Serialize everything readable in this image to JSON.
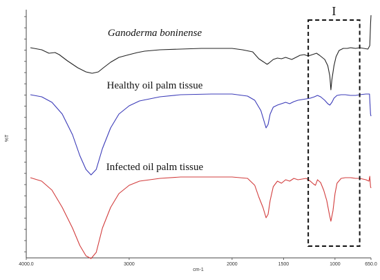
{
  "chart_data": {
    "type": "line",
    "title": "",
    "xlabel": "cm-1",
    "ylabel": "%T",
    "xlim": [
      4000,
      650
    ],
    "x_reversed": true,
    "x_ticks": [
      {
        "value": 4000,
        "label": "4000.0"
      },
      {
        "value": 3000,
        "label": "3000"
      },
      {
        "value": 2000,
        "label": "2000"
      },
      {
        "value": 1500,
        "label": "1500"
      },
      {
        "value": 1000,
        "label": "1000"
      },
      {
        "value": 650,
        "label": "650.0"
      }
    ],
    "grid": false,
    "legend": "none",
    "annotations": [
      {
        "text": "I",
        "type": "dashed-box",
        "x_range": [
          1260,
          760
        ]
      }
    ],
    "series": [
      {
        "name": "Ganoderma boninense",
        "color": "#222222",
        "label_italic": true,
        "points": [
          [
            3960,
            69
          ],
          [
            3850,
            72
          ],
          [
            3780,
            77
          ],
          [
            3720,
            76
          ],
          [
            3680,
            79
          ],
          [
            3600,
            88
          ],
          [
            3500,
            98
          ],
          [
            3420,
            104
          ],
          [
            3360,
            106
          ],
          [
            3300,
            104
          ],
          [
            3250,
            98
          ],
          [
            3180,
            90
          ],
          [
            3100,
            83
          ],
          [
            3000,
            79
          ],
          [
            2920,
            76
          ],
          [
            2850,
            74
          ],
          [
            2700,
            72
          ],
          [
            2500,
            71
          ],
          [
            2300,
            70
          ],
          [
            2200,
            70
          ],
          [
            2100,
            70
          ],
          [
            2000,
            70
          ],
          [
            1900,
            72
          ],
          [
            1800,
            75
          ],
          [
            1740,
            85
          ],
          [
            1700,
            89
          ],
          [
            1660,
            93
          ],
          [
            1640,
            91
          ],
          [
            1600,
            86
          ],
          [
            1560,
            84
          ],
          [
            1520,
            85
          ],
          [
            1480,
            83
          ],
          [
            1420,
            86
          ],
          [
            1380,
            83
          ],
          [
            1340,
            80
          ],
          [
            1300,
            79
          ],
          [
            1260,
            81
          ],
          [
            1220,
            79
          ],
          [
            1180,
            77
          ],
          [
            1150,
            80
          ],
          [
            1100,
            86
          ],
          [
            1070,
            95
          ],
          [
            1050,
            110
          ],
          [
            1040,
            130
          ],
          [
            1030,
            115
          ],
          [
            1010,
            95
          ],
          [
            990,
            82
          ],
          [
            960,
            73
          ],
          [
            920,
            70
          ],
          [
            880,
            70
          ],
          [
            850,
            69
          ],
          [
            800,
            70
          ],
          [
            760,
            69
          ],
          [
            720,
            70
          ],
          [
            680,
            71
          ],
          [
            662,
            66
          ],
          [
            655,
            35
          ],
          [
            650,
            22
          ]
        ]
      },
      {
        "name": "Healthy oil palm tissue",
        "color": "#3a3ab8",
        "label_italic": false,
        "points": [
          [
            3960,
            137
          ],
          [
            3850,
            140
          ],
          [
            3750,
            148
          ],
          [
            3650,
            165
          ],
          [
            3550,
            195
          ],
          [
            3480,
            225
          ],
          [
            3420,
            245
          ],
          [
            3370,
            253
          ],
          [
            3320,
            245
          ],
          [
            3260,
            215
          ],
          [
            3180,
            185
          ],
          [
            3100,
            165
          ],
          [
            3000,
            153
          ],
          [
            2900,
            146
          ],
          [
            2700,
            140
          ],
          [
            2500,
            137
          ],
          [
            2200,
            136
          ],
          [
            2000,
            136
          ],
          [
            1850,
            139
          ],
          [
            1780,
            145
          ],
          [
            1720,
            160
          ],
          [
            1690,
            175
          ],
          [
            1670,
            185
          ],
          [
            1650,
            180
          ],
          [
            1630,
            165
          ],
          [
            1600,
            155
          ],
          [
            1560,
            152
          ],
          [
            1520,
            150
          ],
          [
            1480,
            148
          ],
          [
            1440,
            150
          ],
          [
            1400,
            147
          ],
          [
            1360,
            145
          ],
          [
            1320,
            144
          ],
          [
            1280,
            143
          ],
          [
            1240,
            142
          ],
          [
            1200,
            140
          ],
          [
            1170,
            138
          ],
          [
            1140,
            140
          ],
          [
            1100,
            145
          ],
          [
            1070,
            150
          ],
          [
            1050,
            152
          ],
          [
            1030,
            148
          ],
          [
            1010,
            142
          ],
          [
            980,
            138
          ],
          [
            940,
            137
          ],
          [
            900,
            137
          ],
          [
            850,
            138
          ],
          [
            800,
            138
          ],
          [
            760,
            137
          ],
          [
            700,
            136
          ],
          [
            665,
            136
          ],
          [
            660,
            150
          ],
          [
            655,
            165
          ],
          [
            650,
            168
          ]
        ]
      },
      {
        "name": "Infected oil palm tissue",
        "color": "#d23c3c",
        "label_italic": false,
        "points": [
          [
            3960,
            257
          ],
          [
            3850,
            262
          ],
          [
            3750,
            275
          ],
          [
            3650,
            300
          ],
          [
            3550,
            330
          ],
          [
            3480,
            355
          ],
          [
            3420,
            370
          ],
          [
            3370,
            374
          ],
          [
            3320,
            365
          ],
          [
            3260,
            330
          ],
          [
            3180,
            300
          ],
          [
            3100,
            280
          ],
          [
            3000,
            268
          ],
          [
            2900,
            262
          ],
          [
            2700,
            258
          ],
          [
            2500,
            256
          ],
          [
            2200,
            256
          ],
          [
            2000,
            256
          ],
          [
            1850,
            258
          ],
          [
            1780,
            268
          ],
          [
            1740,
            285
          ],
          [
            1700,
            300
          ],
          [
            1670,
            315
          ],
          [
            1650,
            310
          ],
          [
            1630,
            290
          ],
          [
            1600,
            270
          ],
          [
            1560,
            262
          ],
          [
            1520,
            265
          ],
          [
            1480,
            260
          ],
          [
            1440,
            262
          ],
          [
            1400,
            258
          ],
          [
            1360,
            260
          ],
          [
            1320,
            259
          ],
          [
            1280,
            258
          ],
          [
            1240,
            262
          ],
          [
            1210,
            266
          ],
          [
            1190,
            268
          ],
          [
            1170,
            260
          ],
          [
            1140,
            264
          ],
          [
            1110,
            275
          ],
          [
            1080,
            290
          ],
          [
            1055,
            310
          ],
          [
            1040,
            320
          ],
          [
            1020,
            305
          ],
          [
            1000,
            280
          ],
          [
            980,
            265
          ],
          [
            940,
            258
          ],
          [
            900,
            257
          ],
          [
            850,
            257
          ],
          [
            800,
            258
          ],
          [
            760,
            258
          ],
          [
            700,
            260
          ],
          [
            670,
            262
          ],
          [
            662,
            255
          ],
          [
            655,
            270
          ],
          [
            650,
            272
          ]
        ]
      }
    ]
  }
}
